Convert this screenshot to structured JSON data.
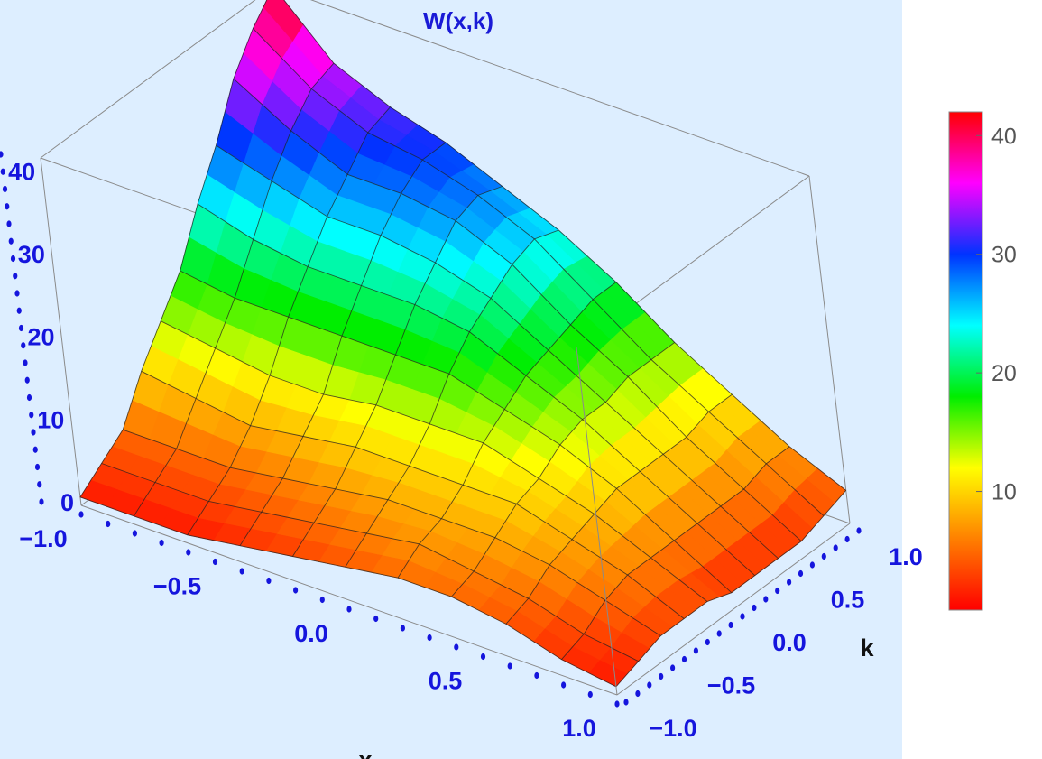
{
  "chart_data": {
    "type": "surface3d",
    "title": "W(x,k)",
    "x": {
      "label": "x",
      "range": [
        -1.0,
        1.0
      ],
      "ticks": [
        "−1.0",
        "−0.5",
        "0.0",
        "0.5",
        "1.0"
      ],
      "tick_values": [
        -1,
        -0.5,
        0,
        0.5,
        1
      ]
    },
    "k": {
      "label": "k",
      "range": [
        -1.0,
        1.0
      ],
      "ticks": [
        "−1.0",
        "−0.5",
        "0.0",
        "0.5",
        "1.0"
      ],
      "tick_values": [
        -1,
        -0.5,
        0,
        0.5,
        1
      ]
    },
    "z": {
      "label": "",
      "range": [
        0,
        42
      ],
      "ticks": [
        "0",
        "10",
        "20",
        "30",
        "40"
      ],
      "tick_values": [
        0,
        10,
        20,
        30,
        40
      ]
    },
    "grid": {
      "x": [
        -1.0,
        -0.8,
        -0.6,
        -0.4,
        -0.2,
        0.0,
        0.2,
        0.4,
        0.6,
        0.8,
        1.0
      ],
      "k": [
        -1.0,
        -0.8,
        -0.6,
        -0.4,
        -0.2,
        0.0,
        0.2,
        0.4,
        0.6,
        0.8,
        1.0
      ],
      "W_rows_by_x": [
        [
          1,
          3,
          5,
          10,
          14,
          18,
          24,
          29,
          35,
          39,
          42
        ],
        [
          1,
          3,
          5,
          9,
          13,
          17,
          22,
          27,
          31,
          34,
          35
        ],
        [
          1,
          3,
          5,
          8,
          12,
          17,
          21,
          25,
          28,
          31,
          32
        ],
        [
          2,
          4,
          6,
          9,
          12,
          17,
          21,
          25,
          28,
          30,
          30
        ],
        [
          3,
          5,
          7,
          10,
          13,
          17,
          21,
          24,
          27,
          28,
          27
        ],
        [
          4,
          6,
          8,
          10,
          13,
          17,
          20,
          22,
          24,
          25,
          24
        ],
        [
          5,
          7,
          8,
          10,
          13,
          15,
          17,
          18,
          19,
          20,
          20
        ],
        [
          5,
          6,
          8,
          10,
          11,
          13,
          14,
          14,
          15,
          15,
          15
        ],
        [
          4,
          5,
          7,
          8,
          9,
          10,
          10,
          10,
          10,
          11,
          11
        ],
        [
          2,
          3,
          5,
          6,
          6,
          6,
          6,
          6,
          6,
          7,
          7
        ],
        [
          1,
          2,
          3,
          3,
          3,
          2,
          2,
          2,
          2,
          3,
          4
        ]
      ]
    },
    "colorbar": {
      "range": [
        0,
        42
      ],
      "ticks": [
        "10",
        "20",
        "30",
        "40"
      ],
      "tick_values": [
        10,
        20,
        30,
        40
      ],
      "colors": [
        "#ff0000",
        "#ff8000",
        "#ffff00",
        "#00ee00",
        "#00ffff",
        "#0033ff",
        "#ff00ff",
        "#ff0000"
      ]
    },
    "colors": {
      "background": "#ddeeff",
      "tick_text": "#1515dd",
      "title_text": "#1a1ad6",
      "box_lines": "#8a8a8a",
      "mesh": "#222222"
    }
  }
}
